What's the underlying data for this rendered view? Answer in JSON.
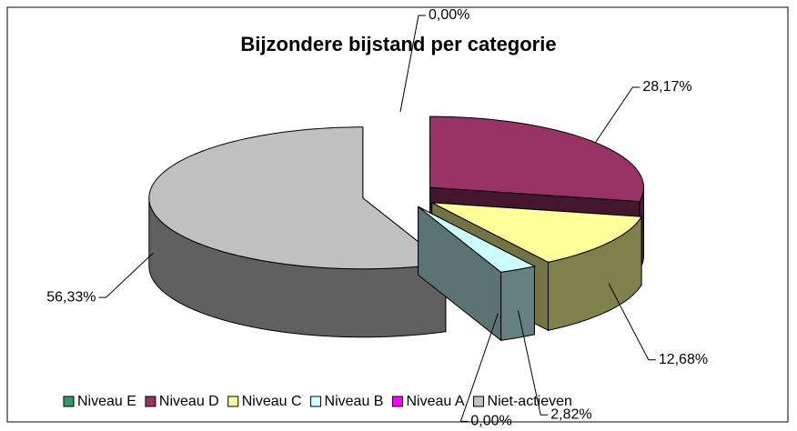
{
  "chart_data": {
    "type": "pie3d",
    "title": "Bijzondere bijstand per categorie",
    "categories": [
      "Niveau E",
      "Niveau D",
      "Niveau C",
      "Niveau B",
      "Niveau A",
      "Niet-actieven"
    ],
    "values": [
      0,
      28.17,
      12.68,
      2.82,
      0,
      56.33
    ],
    "value_labels": [
      "0,00%",
      "28,17%",
      "12,68%",
      "2,82%",
      "0,00%",
      "56,33%"
    ],
    "colors": [
      "#339966",
      "#993366",
      "#FFFF99",
      "#CCFFFF",
      "#FF00FF",
      "#C0C0C0"
    ],
    "legend": "bottom"
  }
}
